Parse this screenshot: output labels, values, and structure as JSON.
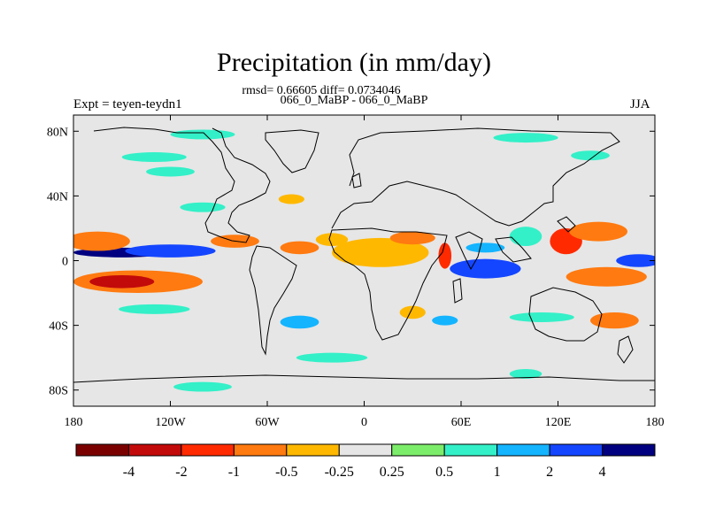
{
  "title": "Precipitation (in mm/day)",
  "stats_line": "rmsd= 0.66605 diff= 0.0734046",
  "cases_line": "066_0_MaBP - 066_0_MaBP",
  "experiment_label": "Expt = teyen-teydn1",
  "season_label": "JJA",
  "chart_data": {
    "type": "heatmap",
    "title": "Precipitation (in mm/day)",
    "projection": "cylindrical-equidistant",
    "x_axis": {
      "range": [
        -180,
        180
      ],
      "ticks": [
        -180,
        -120,
        -60,
        0,
        60,
        120,
        180
      ],
      "tick_labels": [
        "180",
        "120W",
        "60W",
        "0",
        "60E",
        "120E",
        "180"
      ]
    },
    "y_axis": {
      "range": [
        -90,
        90
      ],
      "ticks": [
        80,
        40,
        0,
        -40,
        -80
      ],
      "tick_labels": [
        "80N",
        "40N",
        "0",
        "40S",
        "80S"
      ]
    },
    "colorbar": {
      "colors": [
        "#7a0000",
        "#c20a0a",
        "#ff2a00",
        "#ff7a10",
        "#ffb800",
        "#e6e6e6",
        "#7ced6a",
        "#33f0c8",
        "#14b4ff",
        "#1446ff",
        "#000080"
      ],
      "labels": [
        "-4",
        "-2",
        "-1",
        "-0.5",
        "-0.25",
        "0.25",
        "0.5",
        "1",
        "2",
        "4"
      ],
      "thresholds": [
        -4,
        -2,
        -1,
        -0.5,
        -0.25,
        0.25,
        0.5,
        1,
        2,
        4
      ]
    },
    "anomaly_regions": [
      {
        "lon": -150,
        "lat": 5,
        "rx": 30,
        "ry": 3,
        "value": 4
      },
      {
        "lon": -120,
        "lat": 6,
        "rx": 28,
        "ry": 4,
        "value": 2
      },
      {
        "lon": -165,
        "lat": 12,
        "rx": 20,
        "ry": 6,
        "value": -1
      },
      {
        "lon": -140,
        "lat": -13,
        "rx": 40,
        "ry": 7,
        "value": -1
      },
      {
        "lon": -150,
        "lat": -13,
        "rx": 20,
        "ry": 4,
        "value": -4
      },
      {
        "lon": -80,
        "lat": 12,
        "rx": 15,
        "ry": 4,
        "value": -1
      },
      {
        "lon": -40,
        "lat": 8,
        "rx": 12,
        "ry": 4,
        "value": -1
      },
      {
        "lon": -20,
        "lat": 13,
        "rx": 10,
        "ry": 4,
        "value": -0.5
      },
      {
        "lon": 10,
        "lat": 5,
        "rx": 30,
        "ry": 9,
        "value": -0.5
      },
      {
        "lon": 30,
        "lat": 14,
        "rx": 14,
        "ry": 4,
        "value": -1
      },
      {
        "lon": 50,
        "lat": 3,
        "rx": 4,
        "ry": 8,
        "value": -2
      },
      {
        "lon": 75,
        "lat": -5,
        "rx": 22,
        "ry": 6,
        "value": 2
      },
      {
        "lon": 75,
        "lat": 8,
        "rx": 12,
        "ry": 3,
        "value": 1
      },
      {
        "lon": 100,
        "lat": 15,
        "rx": 10,
        "ry": 6,
        "value": 0.5
      },
      {
        "lon": 125,
        "lat": 12,
        "rx": 10,
        "ry": 8,
        "value": -2
      },
      {
        "lon": 145,
        "lat": 18,
        "rx": 18,
        "ry": 6,
        "value": -1
      },
      {
        "lon": 150,
        "lat": -10,
        "rx": 25,
        "ry": 6,
        "value": -1
      },
      {
        "lon": 170,
        "lat": 0,
        "rx": 14,
        "ry": 4,
        "value": 2
      },
      {
        "lon": 155,
        "lat": -37,
        "rx": 15,
        "ry": 5,
        "value": -1
      },
      {
        "lon": 110,
        "lat": -35,
        "rx": 20,
        "ry": 3,
        "value": 0.5
      },
      {
        "lon": 50,
        "lat": -37,
        "rx": 8,
        "ry": 3,
        "value": 1
      },
      {
        "lon": 30,
        "lat": -32,
        "rx": 8,
        "ry": 4,
        "value": -0.5
      },
      {
        "lon": -130,
        "lat": -30,
        "rx": 22,
        "ry": 3,
        "value": 0.5
      },
      {
        "lon": -40,
        "lat": -38,
        "rx": 12,
        "ry": 4,
        "value": 1
      },
      {
        "lon": -100,
        "lat": 33,
        "rx": 14,
        "ry": 3,
        "value": 0.5
      },
      {
        "lon": -45,
        "lat": 38,
        "rx": 8,
        "ry": 3,
        "value": -0.5
      },
      {
        "lon": -120,
        "lat": 55,
        "rx": 15,
        "ry": 3,
        "value": 0.5
      },
      {
        "lon": -130,
        "lat": 64,
        "rx": 20,
        "ry": 3,
        "value": 0.5
      },
      {
        "lon": 140,
        "lat": 65,
        "rx": 12,
        "ry": 3,
        "value": 0.5
      },
      {
        "lon": -100,
        "lat": 78,
        "rx": 20,
        "ry": 3,
        "value": 0.5
      },
      {
        "lon": 100,
        "lat": 76,
        "rx": 20,
        "ry": 3,
        "value": 0.5
      },
      {
        "lon": -20,
        "lat": -60,
        "rx": 22,
        "ry": 3,
        "value": 0.5
      },
      {
        "lon": 100,
        "lat": -70,
        "rx": 10,
        "ry": 3,
        "value": 0.5
      },
      {
        "lon": -100,
        "lat": -78,
        "rx": 18,
        "ry": 3,
        "value": 0.5
      }
    ]
  }
}
